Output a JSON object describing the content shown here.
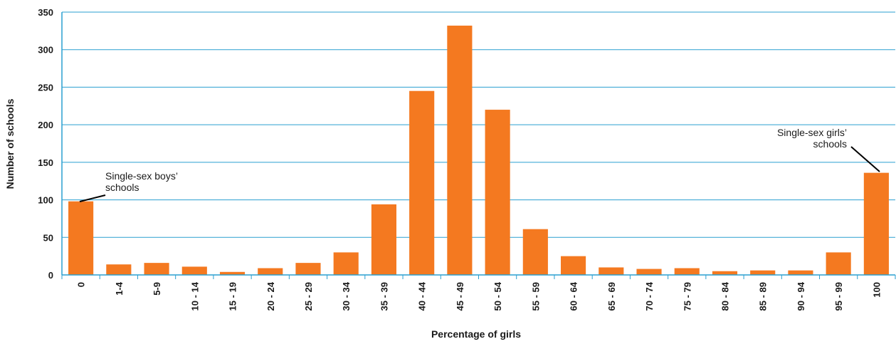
{
  "chart_data": {
    "type": "bar",
    "xlabel": "Percentage of girls",
    "ylabel": "Number of schools",
    "ylim": [
      0,
      350
    ],
    "yticks": [
      0,
      50,
      100,
      150,
      200,
      250,
      300,
      350
    ],
    "grid": true,
    "categories": [
      "0",
      "1-4",
      "5-9",
      "10 - 14",
      "15 - 19",
      "20 - 24",
      "25 - 29",
      "30 - 34",
      "35 - 39",
      "40 - 44",
      "45 - 49",
      "50 - 54",
      "55 - 59",
      "60 - 64",
      "65 - 69",
      "70 - 74",
      "75 - 79",
      "80 - 84",
      "85 - 89",
      "90 - 94",
      "95 - 99",
      "100"
    ],
    "values": [
      98,
      14,
      16,
      11,
      4,
      9,
      16,
      30,
      94,
      245,
      332,
      220,
      61,
      25,
      10,
      8,
      9,
      5,
      6,
      6,
      30,
      136
    ],
    "annotations": [
      {
        "lines": [
          "Single-sex boys’",
          "schools"
        ],
        "category": "0"
      },
      {
        "lines": [
          "Single-sex girls’",
          "schools"
        ],
        "category": "100"
      }
    ],
    "colors": {
      "bar": "#f47920",
      "grid": "#2a9fd0",
      "axis": "#2a9fd0",
      "text": "#1a1a1a"
    }
  }
}
